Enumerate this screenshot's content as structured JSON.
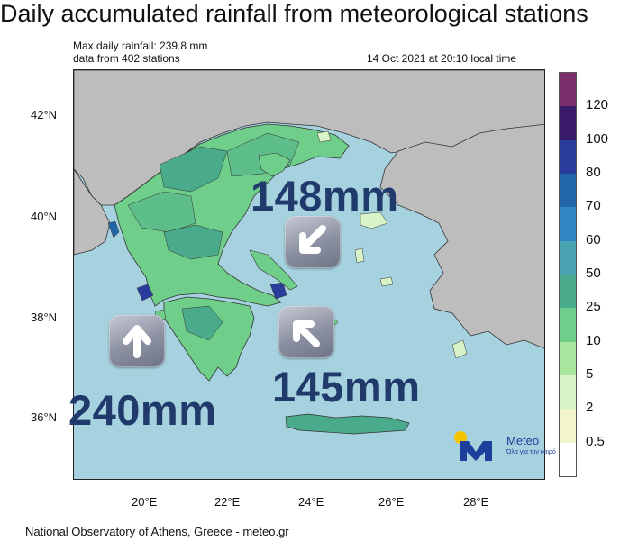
{
  "title": "Daily accumulated rainfall from meteorological stations",
  "info": {
    "max_rainfall": "Max daily rainfall: 239.8 mm",
    "stations": "data from 402 stations",
    "timestamp": "14 Oct 2021 at 20:10 local time"
  },
  "axes": {
    "lat_labels": [
      "42°N",
      "40°N",
      "38°N",
      "36°N"
    ],
    "lon_labels": [
      "20°E",
      "22°E",
      "24°E",
      "26°E",
      "28°E"
    ]
  },
  "colorbar": {
    "labels": [
      "120",
      "100",
      "80",
      "70",
      "60",
      "50",
      "25",
      "10",
      "5",
      "2",
      "0.5"
    ],
    "colors": [
      "#7a2e6b",
      "#3a1a6b",
      "#2a3d9c",
      "#2366a8",
      "#2f86c2",
      "#4aa3b0",
      "#4aab8c",
      "#6fcf8a",
      "#a8e6a0",
      "#d9f3c9",
      "#f2f5c9",
      "#ffffff"
    ]
  },
  "annotations": {
    "north_value": "148mm",
    "east_value": "145mm",
    "west_value": "240mm"
  },
  "icons": {
    "north": "arrow-down-left-icon",
    "east": "arrow-up-left-icon",
    "west": "arrow-up-icon"
  },
  "logo": {
    "name": "Meteo",
    "tagline": "Όλα για τον καιρό"
  },
  "footer": "National Observatory of Athens, Greece - meteo.gr"
}
